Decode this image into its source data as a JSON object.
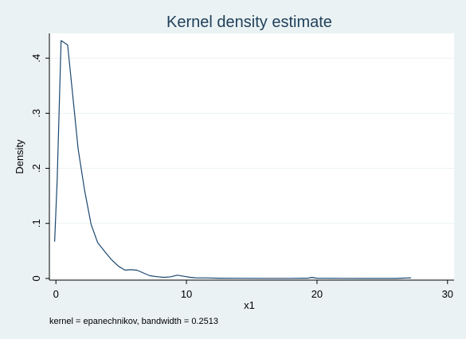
{
  "chart_data": {
    "type": "line",
    "title": "Kernel density estimate",
    "xlabel": "x1",
    "ylabel": "Density",
    "note": "kernel = epanechnikov, bandwidth = 0.2513",
    "xlim": [
      -0.5,
      30.5
    ],
    "ylim": [
      -0.003,
      0.445
    ],
    "x_ticks": [
      0,
      10,
      20,
      30
    ],
    "x_tick_labels": [
      "0",
      "10",
      "20",
      "30"
    ],
    "y_ticks": [
      0,
      0.1,
      0.2,
      0.3,
      0.4
    ],
    "y_tick_labels": [
      "0",
      ".1",
      ".2",
      ".3",
      ".4"
    ],
    "grid": true,
    "series": [
      {
        "color": "#1a476f",
        "x": [
          -0.1,
          0.1,
          0.4,
          0.9,
          1.3,
          1.7,
          2.2,
          2.7,
          3.2,
          3.8,
          4.3,
          4.8,
          5.3,
          5.7,
          6.2,
          6.7,
          7.2,
          7.8,
          8.3,
          8.8,
          9.3,
          9.8,
          10.3,
          10.8,
          11.5,
          12.5,
          14,
          16,
          18,
          19.3,
          19.6,
          20,
          22,
          24,
          26,
          27.2
        ],
        "y": [
          0.067,
          0.18,
          0.432,
          0.424,
          0.33,
          0.235,
          0.16,
          0.098,
          0.065,
          0.047,
          0.033,
          0.022,
          0.015,
          0.016,
          0.015,
          0.01,
          0.005,
          0.003,
          0.002,
          0.003,
          0.006,
          0.004,
          0.002,
          0.001,
          0.001,
          0.0005,
          0.0003,
          0.0002,
          0.0002,
          0.0005,
          0.002,
          0.0005,
          0.0002,
          0.0001,
          0.0001,
          0.0012
        ]
      }
    ]
  }
}
